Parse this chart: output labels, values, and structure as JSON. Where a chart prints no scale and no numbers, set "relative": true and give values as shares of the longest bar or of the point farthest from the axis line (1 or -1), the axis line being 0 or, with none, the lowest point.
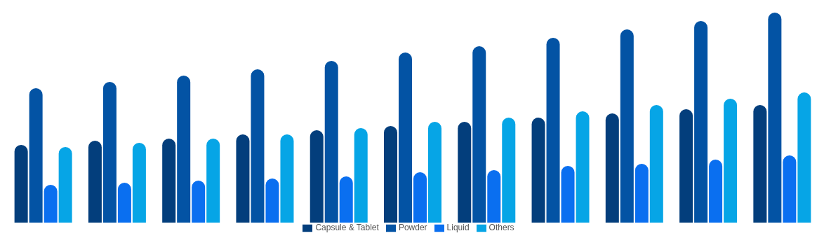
{
  "chart_data": {
    "type": "bar",
    "relative": true,
    "legend": "bottom",
    "grid": false,
    "categories": [
      null,
      null,
      null,
      null,
      null,
      null,
      null,
      null,
      null,
      null,
      null
    ],
    "series": [
      {
        "name": "Capsule & Tablet",
        "color": "#033e7c",
        "values": [
          0.37,
          0.39,
          0.4,
          0.42,
          0.44,
          0.46,
          0.48,
          0.5,
          0.52,
          0.54,
          0.56
        ]
      },
      {
        "name": "Powder",
        "color": "#0353a4",
        "values": [
          0.64,
          0.67,
          0.7,
          0.73,
          0.77,
          0.81,
          0.84,
          0.88,
          0.92,
          0.96,
          1
        ]
      },
      {
        "name": "Liquid",
        "color": "#0a6ff0",
        "values": [
          0.18,
          0.19,
          0.2,
          0.21,
          0.22,
          0.24,
          0.25,
          0.27,
          0.28,
          0.3,
          0.32
        ]
      },
      {
        "name": "Others",
        "color": "#06a5e6",
        "values": [
          0.36,
          0.38,
          0.4,
          0.42,
          0.45,
          0.48,
          0.5,
          0.53,
          0.56,
          0.59,
          0.62
        ]
      }
    ]
  }
}
